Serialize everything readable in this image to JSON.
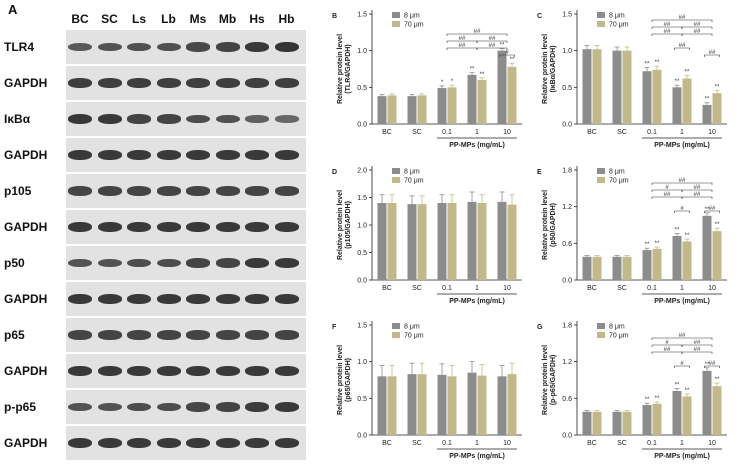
{
  "panel_a": {
    "letter": "A",
    "lanes": [
      "BC",
      "SC",
      "Ls",
      "Lb",
      "Ms",
      "Mb",
      "Hs",
      "Hb"
    ],
    "rows": [
      {
        "label": "TLR4",
        "intensity": [
          0.55,
          0.6,
          0.62,
          0.62,
          0.7,
          0.75,
          0.85,
          0.9
        ]
      },
      {
        "label": "GAPDH",
        "intensity": [
          0.8,
          0.8,
          0.8,
          0.8,
          0.8,
          0.8,
          0.8,
          0.8
        ]
      },
      {
        "label": "IκBα",
        "intensity": [
          0.85,
          0.85,
          0.75,
          0.75,
          0.65,
          0.62,
          0.45,
          0.4
        ]
      },
      {
        "label": "GAPDH",
        "intensity": [
          0.85,
          0.85,
          0.85,
          0.85,
          0.85,
          0.85,
          0.85,
          0.85
        ]
      },
      {
        "label": "p105",
        "intensity": [
          0.75,
          0.75,
          0.75,
          0.75,
          0.75,
          0.75,
          0.75,
          0.75
        ]
      },
      {
        "label": "GAPDH",
        "intensity": [
          0.85,
          0.85,
          0.85,
          0.85,
          0.85,
          0.85,
          0.85,
          0.85
        ]
      },
      {
        "label": "p50",
        "intensity": [
          0.6,
          0.6,
          0.65,
          0.65,
          0.75,
          0.75,
          0.85,
          0.85
        ]
      },
      {
        "label": "GAPDH",
        "intensity": [
          0.85,
          0.85,
          0.85,
          0.85,
          0.85,
          0.85,
          0.85,
          0.85
        ]
      },
      {
        "label": "p65",
        "intensity": [
          0.75,
          0.75,
          0.75,
          0.75,
          0.75,
          0.75,
          0.75,
          0.75
        ]
      },
      {
        "label": "GAPDH",
        "intensity": [
          0.85,
          0.85,
          0.85,
          0.85,
          0.85,
          0.85,
          0.85,
          0.85
        ]
      },
      {
        "label": "p-p65",
        "intensity": [
          0.6,
          0.6,
          0.65,
          0.65,
          0.72,
          0.75,
          0.82,
          0.85
        ]
      },
      {
        "label": "GAPDH",
        "intensity": [
          0.85,
          0.85,
          0.85,
          0.85,
          0.85,
          0.85,
          0.85,
          0.85
        ]
      }
    ]
  },
  "colors": {
    "series_8um": "#8c8c8c",
    "series_70um": "#c2b98a",
    "band": "#2a2a2a",
    "membrane": "#e2e2e2"
  },
  "chart_data": [
    {
      "panel": "B",
      "type": "bar",
      "ylabel": "Relative protein level\n(TLR4/GAPDH)",
      "xlabel": "PP-MPs (mg/mL)",
      "categories": [
        "BC",
        "SC",
        "0.1",
        "1",
        "10"
      ],
      "yticks": [
        0.0,
        0.5,
        1.0,
        1.5
      ],
      "ylim": [
        0,
        1.5
      ],
      "series": [
        {
          "name": "8 μm",
          "values": [
            0.38,
            0.38,
            0.49,
            0.67,
            1.0
          ],
          "errors": [
            0.02,
            0.02,
            0.03,
            0.03,
            0.03
          ],
          "marks": [
            "",
            "",
            "*",
            "**",
            "**"
          ]
        },
        {
          "name": "70 μm",
          "values": [
            0.39,
            0.39,
            0.5,
            0.6,
            0.78
          ],
          "errors": [
            0.02,
            0.02,
            0.03,
            0.03,
            0.05
          ],
          "marks": [
            "",
            "",
            "*",
            "**",
            "**"
          ]
        }
      ],
      "brackets": [
        {
          "from": 2.0,
          "to": 4.0,
          "level": 4,
          "label": "##"
        },
        {
          "from": 2.0,
          "to": 3.0,
          "level": 3,
          "label": "##"
        },
        {
          "from": 3.0,
          "to": 4.0,
          "level": 3,
          "label": "##"
        },
        {
          "from": 2.0,
          "to": 3.0,
          "level": 2,
          "label": "##"
        },
        {
          "from": 3.0,
          "to": 4.0,
          "level": 2,
          "label": "##"
        },
        {
          "from": 3.75,
          "to": 4.25,
          "level": 1,
          "label": "#"
        }
      ]
    },
    {
      "panel": "C",
      "type": "bar",
      "ylabel": "Relative protein level\n(IκBα/GAPDH)",
      "xlabel": "PP-MPs (mg/mL)",
      "categories": [
        "BC",
        "SC",
        "0.1",
        "1",
        "10"
      ],
      "yticks": [
        0.0,
        0.5,
        1.0,
        1.5
      ],
      "ylim": [
        0,
        1.5
      ],
      "series": [
        {
          "name": "8 μm",
          "values": [
            1.02,
            1.0,
            0.72,
            0.5,
            0.26
          ],
          "errors": [
            0.05,
            0.05,
            0.05,
            0.03,
            0.03
          ],
          "marks": [
            "",
            "",
            "**",
            "**",
            "**"
          ]
        },
        {
          "name": "70 μm",
          "values": [
            1.02,
            1.0,
            0.74,
            0.62,
            0.42
          ],
          "errors": [
            0.05,
            0.05,
            0.05,
            0.04,
            0.04
          ],
          "marks": [
            "",
            "",
            "**",
            "**",
            "**"
          ]
        }
      ],
      "brackets": [
        {
          "from": 2.0,
          "to": 4.0,
          "level": 6,
          "label": "##"
        },
        {
          "from": 2.0,
          "to": 3.0,
          "level": 5,
          "label": "##"
        },
        {
          "from": 3.0,
          "to": 4.0,
          "level": 5,
          "label": "##"
        },
        {
          "from": 2.0,
          "to": 3.0,
          "level": 4,
          "label": "##"
        },
        {
          "from": 3.0,
          "to": 4.0,
          "level": 4,
          "label": "##"
        },
        {
          "from": 2.75,
          "to": 3.25,
          "level": 2,
          "label": "##"
        },
        {
          "from": 3.75,
          "to": 4.25,
          "level": 1,
          "label": "##"
        }
      ]
    },
    {
      "panel": "D",
      "type": "bar",
      "ylabel": "Relative protein level\n(p105/GAPDH)",
      "xlabel": "PP-MPs (mg/mL)",
      "categories": [
        "BC",
        "SC",
        "0.1",
        "1",
        "10"
      ],
      "yticks": [
        0.0,
        0.5,
        1.0,
        1.5,
        2.0
      ],
      "ylim": [
        0,
        2.0
      ],
      "series": [
        {
          "name": "8 μm",
          "values": [
            1.4,
            1.38,
            1.4,
            1.42,
            1.42
          ],
          "errors": [
            0.15,
            0.15,
            0.15,
            0.18,
            0.18
          ],
          "marks": [
            "",
            "",
            "",
            "",
            ""
          ]
        },
        {
          "name": "70 μm",
          "values": [
            1.4,
            1.38,
            1.4,
            1.4,
            1.37
          ],
          "errors": [
            0.15,
            0.15,
            0.15,
            0.15,
            0.18
          ],
          "marks": [
            "",
            "",
            "",
            "",
            ""
          ]
        }
      ],
      "brackets": []
    },
    {
      "panel": "E",
      "type": "bar",
      "ylabel": "Relative protein level\n(p50/GAPDH)",
      "xlabel": "PP-MPs (mg/mL)",
      "categories": [
        "BC",
        "SC",
        "0.1",
        "1",
        "10"
      ],
      "yticks": [
        0.0,
        0.6,
        1.2,
        1.8
      ],
      "ylim": [
        0,
        1.8
      ],
      "series": [
        {
          "name": "8 μm",
          "values": [
            0.38,
            0.38,
            0.49,
            0.72,
            1.05
          ],
          "errors": [
            0.02,
            0.02,
            0.03,
            0.04,
            0.05
          ],
          "marks": [
            "",
            "",
            "**",
            "**",
            "**"
          ]
        },
        {
          "name": "70 μm",
          "values": [
            0.38,
            0.38,
            0.51,
            0.63,
            0.8
          ],
          "errors": [
            0.02,
            0.02,
            0.03,
            0.04,
            0.05
          ],
          "marks": [
            "",
            "",
            "**",
            "**",
            "**"
          ]
        }
      ],
      "brackets": [
        {
          "from": 2.0,
          "to": 4.0,
          "level": 5,
          "label": "##"
        },
        {
          "from": 2.0,
          "to": 3.0,
          "level": 4,
          "label": "#"
        },
        {
          "from": 3.0,
          "to": 4.0,
          "level": 4,
          "label": "##"
        },
        {
          "from": 2.0,
          "to": 3.0,
          "level": 3,
          "label": "##"
        },
        {
          "from": 3.0,
          "to": 4.0,
          "level": 3,
          "label": "##"
        },
        {
          "from": 2.75,
          "to": 3.25,
          "level": 1,
          "label": "#"
        },
        {
          "from": 3.75,
          "to": 4.25,
          "level": 1,
          "label": "##"
        }
      ]
    },
    {
      "panel": "F",
      "type": "bar",
      "ylabel": "Relative protein level\n(p65/GAPDH)",
      "xlabel": "PP-MPs (mg/mL)",
      "categories": [
        "BC",
        "SC",
        "0.1",
        "1",
        "10"
      ],
      "yticks": [
        0.0,
        0.5,
        1.0,
        1.5
      ],
      "ylim": [
        0,
        1.5
      ],
      "series": [
        {
          "name": "8 μm",
          "values": [
            0.8,
            0.83,
            0.82,
            0.85,
            0.8
          ],
          "errors": [
            0.15,
            0.15,
            0.15,
            0.15,
            0.15
          ],
          "marks": [
            "",
            "",
            "",
            "",
            ""
          ]
        },
        {
          "name": "70 μm",
          "values": [
            0.8,
            0.83,
            0.8,
            0.81,
            0.83
          ],
          "errors": [
            0.15,
            0.15,
            0.15,
            0.15,
            0.15
          ],
          "marks": [
            "",
            "",
            "",
            "",
            ""
          ]
        }
      ],
      "brackets": []
    },
    {
      "panel": "G",
      "type": "bar",
      "ylabel": "Relative protein level\n(p-p65/GAPDH)",
      "xlabel": "PP-MPs (mg/mL)",
      "categories": [
        "BC",
        "SC",
        "0.1",
        "1",
        "10"
      ],
      "yticks": [
        0.0,
        0.6,
        1.2,
        1.8
      ],
      "ylim": [
        0,
        1.8
      ],
      "series": [
        {
          "name": "8 μm",
          "values": [
            0.38,
            0.38,
            0.49,
            0.72,
            1.05
          ],
          "errors": [
            0.02,
            0.02,
            0.03,
            0.04,
            0.05
          ],
          "marks": [
            "",
            "",
            "**",
            "**",
            "**"
          ]
        },
        {
          "name": "70 μm",
          "values": [
            0.38,
            0.38,
            0.51,
            0.63,
            0.8
          ],
          "errors": [
            0.02,
            0.02,
            0.03,
            0.04,
            0.05
          ],
          "marks": [
            "",
            "",
            "**",
            "**",
            "**"
          ]
        }
      ],
      "brackets": [
        {
          "from": 2.0,
          "to": 4.0,
          "level": 5,
          "label": "##"
        },
        {
          "from": 2.0,
          "to": 3.0,
          "level": 4,
          "label": "#"
        },
        {
          "from": 3.0,
          "to": 4.0,
          "level": 4,
          "label": "##"
        },
        {
          "from": 2.0,
          "to": 3.0,
          "level": 3,
          "label": "##"
        },
        {
          "from": 3.0,
          "to": 4.0,
          "level": 3,
          "label": "##"
        },
        {
          "from": 2.75,
          "to": 3.25,
          "level": 1,
          "label": "#"
        },
        {
          "from": 3.75,
          "to": 4.25,
          "level": 1,
          "label": "##"
        }
      ]
    }
  ]
}
